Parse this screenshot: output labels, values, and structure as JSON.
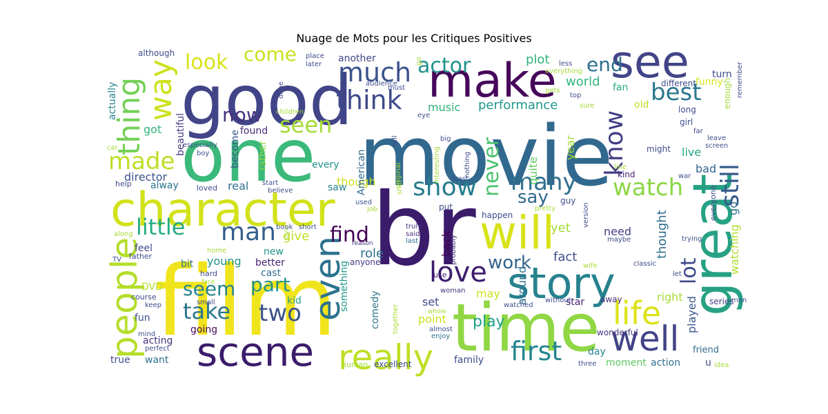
{
  "title": "Nuage de Mots pour les Critiques Positives",
  "chart_data": {
    "type": "wordcloud",
    "title": "Nuage de Mots pour les Critiques Positives",
    "palette": "viridis",
    "words": [
      {
        "text": "movie",
        "color": "#31688e"
      },
      {
        "text": "br",
        "color": "#3b1c6b"
      },
      {
        "text": "film",
        "color": "#f0e41c"
      },
      {
        "text": "one",
        "color": "#3bb97a"
      },
      {
        "text": "good",
        "color": "#414487"
      },
      {
        "text": "time",
        "color": "#8fd744"
      },
      {
        "text": "character",
        "color": "#d2e21b"
      },
      {
        "text": "make",
        "color": "#46075a"
      },
      {
        "text": "see",
        "color": "#414487"
      },
      {
        "text": "story",
        "color": "#26828e"
      },
      {
        "text": "great",
        "color": "#26a184"
      },
      {
        "text": "will",
        "color": "#d8e219"
      },
      {
        "text": "scene",
        "color": "#3b1c6b"
      },
      {
        "text": "people",
        "color": "#b5de2b"
      },
      {
        "text": "really",
        "color": "#bddf26"
      },
      {
        "text": "well",
        "color": "#414487"
      },
      {
        "text": "even",
        "color": "#2c728e"
      },
      {
        "text": "life",
        "color": "#dde318"
      },
      {
        "text": "love",
        "color": "#3b1c6b"
      },
      {
        "text": "much",
        "color": "#3b528b"
      },
      {
        "text": "think",
        "color": "#3e4a89"
      },
      {
        "text": "first",
        "color": "#24868e"
      },
      {
        "text": "thing",
        "color": "#73d056"
      },
      {
        "text": "way",
        "color": "#cde11d"
      },
      {
        "text": "made",
        "color": "#bddf26"
      },
      {
        "text": "show",
        "color": "#287d8e"
      },
      {
        "text": "little",
        "color": "#25ab82"
      },
      {
        "text": "man",
        "color": "#355f8d"
      },
      {
        "text": "best",
        "color": "#2a788e"
      },
      {
        "text": "watch",
        "color": "#8bd646"
      },
      {
        "text": "know",
        "color": "#433e85"
      },
      {
        "text": "still",
        "color": "#375b8d"
      },
      {
        "text": "many",
        "color": "#2e6f8e"
      },
      {
        "text": "take",
        "color": "#2b758e"
      },
      {
        "text": "two",
        "color": "#3b528b"
      },
      {
        "text": "seen",
        "color": "#a5db36"
      },
      {
        "text": "seem",
        "color": "#25848e"
      },
      {
        "text": "part",
        "color": "#20928c"
      },
      {
        "text": "now",
        "color": "#46327e"
      },
      {
        "text": "look",
        "color": "#d8e219"
      },
      {
        "text": "come",
        "color": "#c8e020"
      },
      {
        "text": "end",
        "color": "#2d708e"
      },
      {
        "text": "actor",
        "color": "#21918c"
      },
      {
        "text": "never",
        "color": "#4ac16d"
      },
      {
        "text": "lot",
        "color": "#3e4989"
      },
      {
        "text": "say",
        "color": "#31688e"
      },
      {
        "text": "find",
        "color": "#440154"
      },
      {
        "text": "work",
        "color": "#33638d"
      },
      {
        "text": "play",
        "color": "#1f9e89"
      },
      {
        "text": "plot",
        "color": "#2fb47c"
      },
      {
        "text": "world",
        "color": "#2fb47c"
      },
      {
        "text": "performance",
        "color": "#1f988b"
      },
      {
        "text": "music",
        "color": "#2fb47c"
      },
      {
        "text": "director",
        "color": "#3b528b"
      },
      {
        "text": "give",
        "color": "#c2df23"
      },
      {
        "text": "role",
        "color": "#2c728e"
      },
      {
        "text": "fact",
        "color": "#3e4c8a"
      },
      {
        "text": "thought",
        "color": "#2e6e8e"
      },
      {
        "text": "played",
        "color": "#38588c"
      },
      {
        "text": "watching",
        "color": "#b0dd2f"
      },
      {
        "text": "go",
        "color": "#2c738e"
      },
      {
        "text": "bad",
        "color": "#33638d"
      },
      {
        "text": "live",
        "color": "#20a386"
      },
      {
        "text": "year",
        "color": "#a8db34"
      },
      {
        "text": "quite",
        "color": "#5ec962"
      },
      {
        "text": "yet",
        "color": "#a2da37"
      },
      {
        "text": "need",
        "color": "#433e85"
      },
      {
        "text": "kind",
        "color": "#482173"
      },
      {
        "text": "back",
        "color": "#440154"
      },
      {
        "text": "may",
        "color": "#cde11d"
      },
      {
        "text": "point",
        "color": "#cde11d"
      },
      {
        "text": "set",
        "color": "#3e4989"
      },
      {
        "text": "around",
        "color": "#2e6e8e"
      },
      {
        "text": "though",
        "color": "#cde11d"
      },
      {
        "text": "American",
        "color": "#306a8e"
      },
      {
        "text": "saw",
        "color": "#26828e"
      },
      {
        "text": "every",
        "color": "#21918c"
      },
      {
        "text": "real",
        "color": "#2c728e"
      },
      {
        "text": "become",
        "color": "#3b528b"
      },
      {
        "text": "rather",
        "color": "#8bd646"
      },
      {
        "text": "alway",
        "color": "#2b758e"
      },
      {
        "text": "got",
        "color": "#2fb47c"
      },
      {
        "text": "actually",
        "color": "#26828e"
      },
      {
        "text": "beautiful",
        "color": "#443a83"
      },
      {
        "text": "found",
        "color": "#472c7a"
      },
      {
        "text": "funny",
        "color": "#d5e21a"
      },
      {
        "text": "turn",
        "color": "#3e4c8a"
      },
      {
        "text": "fan",
        "color": "#25ab82"
      },
      {
        "text": "old",
        "color": "#c0df25"
      },
      {
        "text": "another",
        "color": "#3e4989"
      },
      {
        "text": "young",
        "color": "#20928c"
      },
      {
        "text": "better",
        "color": "#482173"
      },
      {
        "text": "bit",
        "color": "#2a788e"
      },
      {
        "text": "feel",
        "color": "#3e4a89"
      },
      {
        "text": "new",
        "color": "#20928c"
      },
      {
        "text": "cast",
        "color": "#2e6e8e"
      },
      {
        "text": "kid",
        "color": "#26a184"
      },
      {
        "text": "DVD",
        "color": "#b5de2b"
      },
      {
        "text": "fun",
        "color": "#3b528b"
      },
      {
        "text": "going",
        "color": "#46075a"
      },
      {
        "text": "acting",
        "color": "#46327e"
      },
      {
        "text": "want",
        "color": "#2e6e8e"
      },
      {
        "text": "true",
        "color": "#3e4c8a"
      },
      {
        "text": "family",
        "color": "#3e4c8a"
      },
      {
        "text": "day",
        "color": "#25848e"
      },
      {
        "text": "moment",
        "color": "#5ec962"
      },
      {
        "text": "action",
        "color": "#2e6e8e"
      },
      {
        "text": "friend",
        "color": "#306a8e"
      },
      {
        "text": "right",
        "color": "#a5db36"
      },
      {
        "text": "series",
        "color": "#433e85"
      },
      {
        "text": "star",
        "color": "#482173"
      },
      {
        "text": "away",
        "color": "#472c7a"
      },
      {
        "text": "comedy",
        "color": "#2b758e"
      },
      {
        "text": "something",
        "color": "#1f988b"
      },
      {
        "text": "wonderful",
        "color": "#453882"
      },
      {
        "text": "anyone",
        "color": "#453882"
      },
      {
        "text": "excellent",
        "color": "#3e4a89"
      },
      {
        "text": "human",
        "color": "#a5db36"
      },
      {
        "text": "enjoy",
        "color": "#2c728e"
      },
      {
        "text": "almost",
        "color": "#3b528b"
      },
      {
        "text": "woman",
        "color": "#46327e"
      },
      {
        "text": "use",
        "color": "#482173"
      },
      {
        "text": "whole",
        "color": "#a8db34"
      },
      {
        "text": "together",
        "color": "#a8db34"
      },
      {
        "text": "probably",
        "color": "#46327e"
      },
      {
        "text": "last",
        "color": "#2e6e8e"
      },
      {
        "text": "said",
        "color": "#46327e"
      },
      {
        "text": "truly",
        "color": "#46327e"
      },
      {
        "text": "reason",
        "color": "#46327e"
      },
      {
        "text": "put",
        "color": "#3e4989"
      },
      {
        "text": "least",
        "color": "#3b528b"
      },
      {
        "text": "job",
        "color": "#a5db36"
      },
      {
        "text": "used",
        "color": "#3b528b"
      },
      {
        "text": "style",
        "color": "#a8db34"
      },
      {
        "text": "short",
        "color": "#3b528b"
      },
      {
        "text": "book",
        "color": "#3b528b"
      },
      {
        "text": "start",
        "color": "#3b528b"
      },
      {
        "text": "believe",
        "color": "#3e4c8a"
      },
      {
        "text": "loved",
        "color": "#3e4c8a"
      },
      {
        "text": "help",
        "color": "#3e4c8a"
      },
      {
        "text": "home",
        "color": "#a5db36"
      },
      {
        "text": "father",
        "color": "#3e4c8a"
      },
      {
        "text": "hard",
        "color": "#3e4c8a"
      },
      {
        "text": "face",
        "color": "#a5db36"
      },
      {
        "text": "small",
        "color": "#3e4c8a"
      },
      {
        "text": "keep",
        "color": "#3e4c8a"
      },
      {
        "text": "course",
        "color": "#3e4c8a"
      },
      {
        "text": "mind",
        "color": "#3e4c8a"
      },
      {
        "text": "perfect",
        "color": "#3e4c8a"
      },
      {
        "text": "TV",
        "color": "#3e4c8a"
      },
      {
        "text": "along",
        "color": "#a5db36"
      },
      {
        "text": "car",
        "color": "#a5db36"
      },
      {
        "text": "boy",
        "color": "#3e4c8a"
      },
      {
        "text": "especially",
        "color": "#3e4c8a"
      },
      {
        "text": "children",
        "color": "#a5db36"
      },
      {
        "text": "done",
        "color": "#3e4c8a"
      },
      {
        "text": "audience",
        "color": "#3e4c8a"
      },
      {
        "text": "must",
        "color": "#3e4c8a"
      },
      {
        "text": "place",
        "color": "#3e4c8a"
      },
      {
        "text": "later",
        "color": "#3e4c8a"
      },
      {
        "text": "although",
        "color": "#3e4c8a"
      },
      {
        "text": "eye",
        "color": "#3e4c8a"
      },
      {
        "text": "tell",
        "color": "#3e4c8a"
      },
      {
        "text": "original",
        "color": "#a5db36"
      },
      {
        "text": "interesting",
        "color": "#a5db36"
      },
      {
        "text": "big",
        "color": "#3e4c8a"
      },
      {
        "text": "nothing",
        "color": "#3e4c8a"
      },
      {
        "text": "less",
        "color": "#3e4c8a"
      },
      {
        "text": "everything",
        "color": "#a5db36"
      },
      {
        "text": "gets",
        "color": "#a5db36"
      },
      {
        "text": "top",
        "color": "#3e4c8a"
      },
      {
        "text": "sure",
        "color": "#a5db36"
      },
      {
        "text": "long",
        "color": "#3e4c8a"
      },
      {
        "text": "girl",
        "color": "#3e4c8a"
      },
      {
        "text": "far",
        "color": "#3e4c8a"
      },
      {
        "text": "leave",
        "color": "#3e4c8a"
      },
      {
        "text": "screen",
        "color": "#3e4c8a"
      },
      {
        "text": "different",
        "color": "#3e4c8a"
      },
      {
        "text": "enough",
        "color": "#a5db36"
      },
      {
        "text": "remember",
        "color": "#3e4c8a"
      },
      {
        "text": "might",
        "color": "#3e4c8a"
      },
      {
        "text": "line",
        "color": "#a5db36"
      },
      {
        "text": "war",
        "color": "#3e4c8a"
      },
      {
        "text": "guy",
        "color": "#3e4c8a"
      },
      {
        "text": "pretty",
        "color": "#a5db36"
      },
      {
        "text": "version",
        "color": "#3e4c8a"
      },
      {
        "text": "maybe",
        "color": "#3e4c8a"
      },
      {
        "text": "everyone",
        "color": "#3e4c8a"
      },
      {
        "text": "trying",
        "color": "#3e4c8a"
      },
      {
        "text": "happen",
        "color": "#3e4c8a"
      },
      {
        "text": "classic",
        "color": "#3e4c8a"
      },
      {
        "text": "wife",
        "color": "#a5db36"
      },
      {
        "text": "let",
        "color": "#3e4c8a"
      },
      {
        "text": "without",
        "color": "#3e4c8a"
      },
      {
        "text": "watched",
        "color": "#3e4c8a"
      },
      {
        "text": "three",
        "color": "#3e4c8a"
      },
      {
        "text": "u",
        "color": "#3e4c8a"
      },
      {
        "text": "idea",
        "color": "#a5db36"
      },
      {
        "text": "men",
        "color": "#3e4c8a"
      },
      {
        "text": "shot",
        "color": "#a5db36"
      },
      {
        "text": "go",
        "color": "#a5db36"
      }
    ]
  }
}
